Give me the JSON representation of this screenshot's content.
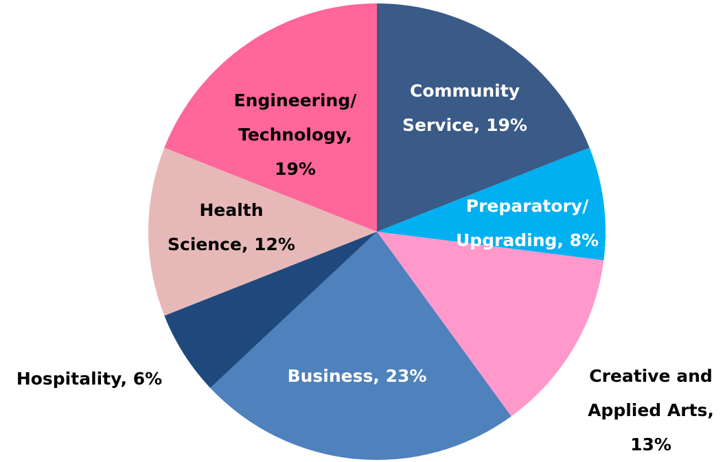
{
  "chart_data": {
    "type": "pie",
    "values": [
      19,
      8,
      13,
      23,
      6,
      12,
      19
    ],
    "value_labels": [
      "Community\nService, 19%",
      "Preparatory/\nUpgrading, 8%",
      "Creative and\nApplied Arts,\n13%",
      "Business, 23%",
      "Hospitality, 6%",
      "Health\nScience, 12%",
      "Engineering/\nTechnology,\n19%"
    ],
    "colors": [
      "#3a5a87",
      "#00b0f0",
      "#ff99cc",
      "#4f81bd",
      "#1f497d",
      "#e6b9b8",
      "#ff6699"
    ],
    "label_colors": [
      "#ffffff",
      "#ffffff",
      "#000000",
      "#ffffff",
      "#000000",
      "#000000",
      "#000000"
    ]
  }
}
